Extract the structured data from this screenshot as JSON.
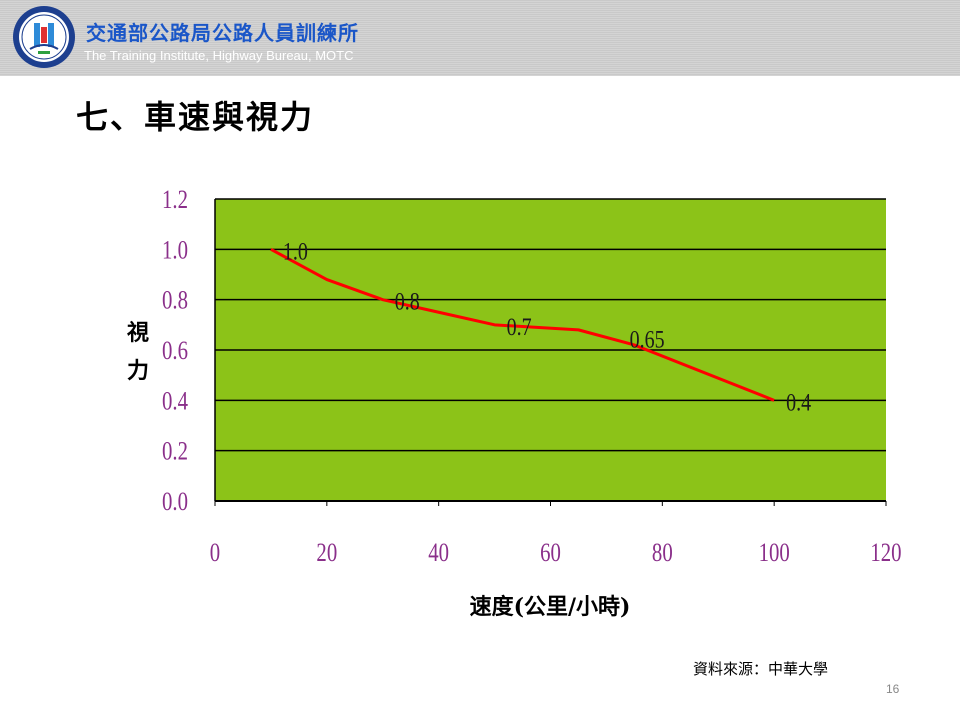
{
  "header": {
    "org_name_cn": "交通部公路局公路人員訓練所",
    "org_name_en": "The Training Institute, Highway Bureau, MOTC"
  },
  "slide": {
    "title": "七、車速與視力",
    "source_note": "資料來源：中華大學",
    "page_number": "16"
  },
  "chart_data": {
    "type": "line",
    "title": "",
    "xlabel": "速度(公里/小時)",
    "ylabel": "視力",
    "xlim": [
      0,
      120
    ],
    "ylim": [
      0,
      1.2
    ],
    "x_ticks": [
      "0",
      "20",
      "40",
      "60",
      "80",
      "100",
      "120"
    ],
    "y_ticks": [
      "0.0",
      "0.2",
      "0.4",
      "0.6",
      "0.8",
      "1.0",
      "1.2"
    ],
    "grid": "horizontal",
    "series": [
      {
        "color": "#ff0000",
        "x": [
          10,
          20,
          30,
          40,
          50,
          65,
          75,
          100
        ],
        "y": [
          1.0,
          0.88,
          0.8,
          0.75,
          0.7,
          0.68,
          0.62,
          0.4
        ]
      }
    ],
    "data_labels": [
      {
        "x": 10,
        "y": 1.0,
        "text": "1.0"
      },
      {
        "x": 30,
        "y": 0.8,
        "text": "0.8"
      },
      {
        "x": 50,
        "y": 0.7,
        "text": "0.7"
      },
      {
        "x": 72,
        "y": 0.65,
        "text": "0.65"
      },
      {
        "x": 100,
        "y": 0.4,
        "text": "0.4"
      }
    ],
    "colors": {
      "plot_background": "#8cc318",
      "grid": "#000000",
      "line": "#ff0000",
      "tick_text": "#8a2f8a"
    }
  }
}
